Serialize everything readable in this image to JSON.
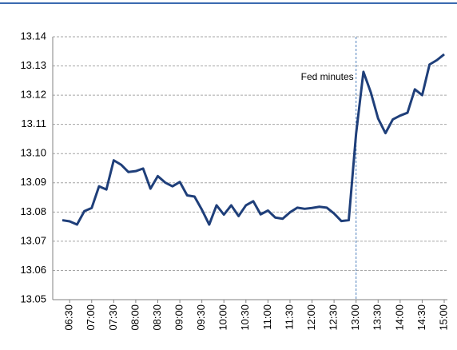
{
  "chart_data": {
    "type": "line",
    "categories": [
      null,
      "06:30",
      null,
      null,
      "07:00",
      null,
      null,
      "07:30",
      null,
      null,
      "08:00",
      null,
      null,
      "08:30",
      null,
      null,
      "09:00",
      null,
      null,
      "09:30",
      null,
      null,
      "10:00",
      null,
      null,
      "10:30",
      null,
      null,
      "11:00",
      null,
      null,
      "11:30",
      null,
      null,
      "12:00",
      null,
      null,
      "12:30",
      null,
      null,
      "13:00",
      null,
      null,
      "13:30",
      null,
      null,
      "14:00",
      null,
      null,
      "14:30",
      null,
      null,
      "15:00"
    ],
    "series": [
      {
        "color": "#1f3f7a",
        "values": [
          13.0772,
          13.0768,
          13.0757,
          13.0803,
          13.0814,
          13.0888,
          13.0877,
          13.0977,
          13.0962,
          13.0937,
          13.094,
          13.0949,
          13.088,
          13.0923,
          13.0901,
          13.0888,
          13.0903,
          13.0857,
          13.0853,
          13.0808,
          13.0757,
          13.0823,
          13.0791,
          13.0823,
          13.0786,
          13.0823,
          13.0837,
          13.0792,
          13.0805,
          13.0781,
          13.0777,
          13.0799,
          13.0815,
          13.0811,
          13.0814,
          13.0818,
          13.0815,
          13.0795,
          13.0769,
          13.0772,
          13.1068,
          13.128,
          13.121,
          13.112,
          13.107,
          13.1117,
          13.113,
          13.114,
          13.122,
          13.12,
          13.1305,
          13.132,
          13.134
        ]
      }
    ],
    "ylim": [
      13.05,
      13.14
    ],
    "yticks": [
      13.05,
      13.06,
      13.07,
      13.08,
      13.09,
      {
        "value": 13.1,
        "label": "13.10"
      },
      13.11,
      13.12,
      13.13,
      13.14
    ],
    "grid": true,
    "annotation": {
      "text": "Fed minutes",
      "x": "13:00"
    }
  }
}
